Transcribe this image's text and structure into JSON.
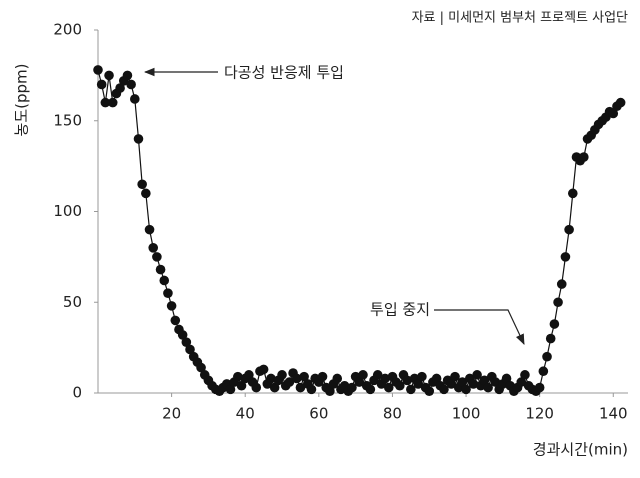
{
  "chart_data": {
    "type": "line",
    "source": "자료 | 미세먼지 범부처 프로젝트 사업단",
    "y_label": "농도(ppm)",
    "x_label": "경과시간(min)",
    "annotations": [
      "다공성 반응제 투입",
      "투입 중지"
    ],
    "color": "#111111",
    "xlim": [
      0,
      144
    ],
    "xticks": [
      20,
      40,
      60,
      80,
      100,
      120,
      140
    ],
    "ylim": [
      0,
      200
    ],
    "yticks": [
      0,
      50,
      100,
      150,
      200
    ],
    "x": [
      0,
      1,
      2,
      3,
      4,
      5,
      6,
      7,
      8,
      9,
      10,
      11,
      12,
      13,
      14,
      15,
      16,
      17,
      18,
      19,
      20,
      21,
      22,
      23,
      24,
      25,
      26,
      27,
      28,
      29,
      30,
      31,
      32,
      33,
      34,
      35,
      36,
      37,
      38,
      39,
      40,
      41,
      42,
      43,
      44,
      45,
      46,
      47,
      48,
      49,
      50,
      51,
      52,
      53,
      54,
      55,
      56,
      57,
      58,
      59,
      60,
      61,
      62,
      63,
      64,
      65,
      66,
      67,
      68,
      69,
      70,
      71,
      72,
      73,
      74,
      75,
      76,
      77,
      78,
      79,
      80,
      81,
      82,
      83,
      84,
      85,
      86,
      87,
      88,
      89,
      90,
      91,
      92,
      93,
      94,
      95,
      96,
      97,
      98,
      99,
      100,
      101,
      102,
      103,
      104,
      105,
      106,
      107,
      108,
      109,
      110,
      111,
      112,
      113,
      114,
      115,
      116,
      117,
      118,
      119,
      120,
      121,
      122,
      123,
      124,
      125,
      126,
      127,
      128,
      129,
      130,
      131,
      132,
      133,
      134,
      135,
      136,
      137,
      138,
      139,
      140,
      141,
      142
    ],
    "values": [
      178,
      170,
      160,
      175,
      160,
      165,
      168,
      172,
      175,
      170,
      162,
      140,
      115,
      110,
      90,
      80,
      75,
      68,
      62,
      55,
      48,
      40,
      35,
      32,
      28,
      24,
      20,
      17,
      14,
      10,
      7,
      4,
      2,
      1,
      3,
      5,
      2,
      6,
      9,
      4,
      8,
      10,
      6,
      3,
      12,
      13,
      5,
      8,
      3,
      7,
      10,
      4,
      6,
      11,
      8,
      3,
      9,
      5,
      2,
      8,
      6,
      9,
      3,
      1,
      5,
      8,
      2,
      4,
      1,
      3,
      9,
      6,
      10,
      4,
      2,
      7,
      10,
      5,
      8,
      3,
      9,
      6,
      4,
      10,
      7,
      2,
      8,
      5,
      9,
      3,
      1,
      6,
      8,
      4,
      2,
      7,
      5,
      9,
      3,
      6,
      2,
      8,
      5,
      10,
      4,
      7,
      3,
      9,
      6,
      2,
      5,
      8,
      4,
      1,
      3,
      6,
      10,
      4,
      2,
      1,
      3,
      12,
      20,
      30,
      38,
      50,
      60,
      75,
      90,
      110,
      130,
      128,
      130,
      140,
      142,
      145,
      148,
      150,
      152,
      155,
      154,
      158,
      160
    ]
  }
}
